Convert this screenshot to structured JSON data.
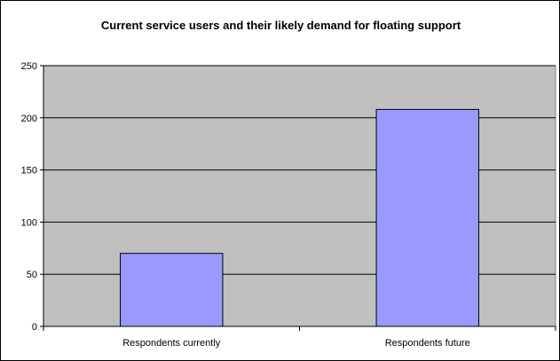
{
  "chart_data": {
    "type": "bar",
    "title": "Current service users and their likely demand for floating support",
    "xlabel": "",
    "ylabel": "",
    "categories": [
      "Respondents currently",
      "Respondents future"
    ],
    "values": [
      70,
      208
    ],
    "ylim": [
      0,
      250
    ],
    "yticks": [
      0,
      50,
      100,
      150,
      200,
      250
    ],
    "grid": true,
    "colors": {
      "bar": "#9999ff",
      "plot_bg": "#c0c0c0"
    }
  }
}
